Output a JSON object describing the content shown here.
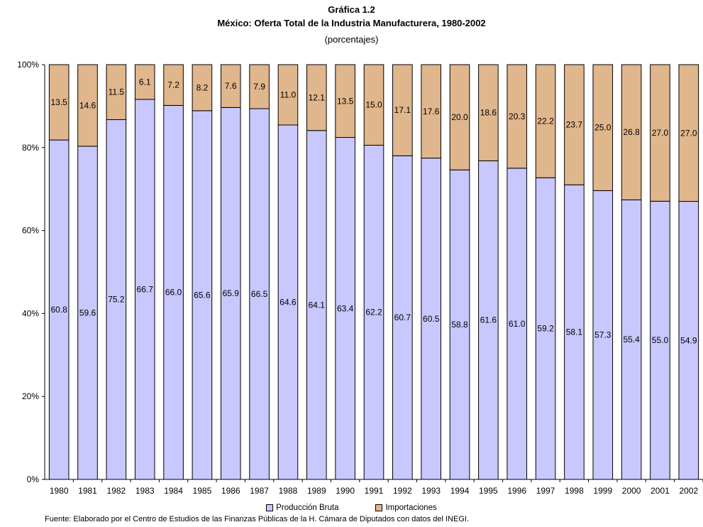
{
  "header": {
    "title": "Gráfica 1.2",
    "subtitle": "México: Oferta Total de la Industria Manufacturera, 1980-2002",
    "units": "(porcentajes)"
  },
  "source": "Fuente: Elaborado por el Centro de Estudios de las Finanzas Públicas de la H. Cámara de Diputados con datos del INEGI.",
  "chart_data": {
    "type": "bar",
    "stacked": true,
    "normalized_100_percent": true,
    "categories": [
      "1980",
      "1981",
      "1982",
      "1983",
      "1984",
      "1985",
      "1986",
      "1987",
      "1988",
      "1989",
      "1990",
      "1991",
      "1992",
      "1993",
      "1994",
      "1995",
      "1996",
      "1997",
      "1998",
      "1999",
      "2000",
      "2001",
      "2002"
    ],
    "series": [
      {
        "name": "Producción Bruta",
        "color": "#c8c8ff",
        "values": [
          60.8,
          59.6,
          75.2,
          66.7,
          66.0,
          65.6,
          65.9,
          66.5,
          64.6,
          64.1,
          63.4,
          62.2,
          60.7,
          60.5,
          58.8,
          61.6,
          61.0,
          59.2,
          58.1,
          57.3,
          55.4,
          55.0,
          54.9
        ]
      },
      {
        "name": "Importaciones",
        "color": "#e0b68c",
        "values": [
          13.5,
          14.6,
          11.5,
          6.1,
          7.2,
          8.2,
          7.6,
          7.9,
          11.0,
          12.1,
          13.5,
          15.0,
          17.1,
          17.6,
          20.0,
          18.6,
          20.3,
          22.2,
          23.7,
          25.0,
          26.8,
          27.0,
          27.0
        ]
      }
    ],
    "y_ticks": [
      "0%",
      "20%",
      "40%",
      "60%",
      "80%",
      "100%"
    ],
    "ylim": [
      0,
      100
    ],
    "grid": false,
    "legend_position": "bottom"
  }
}
